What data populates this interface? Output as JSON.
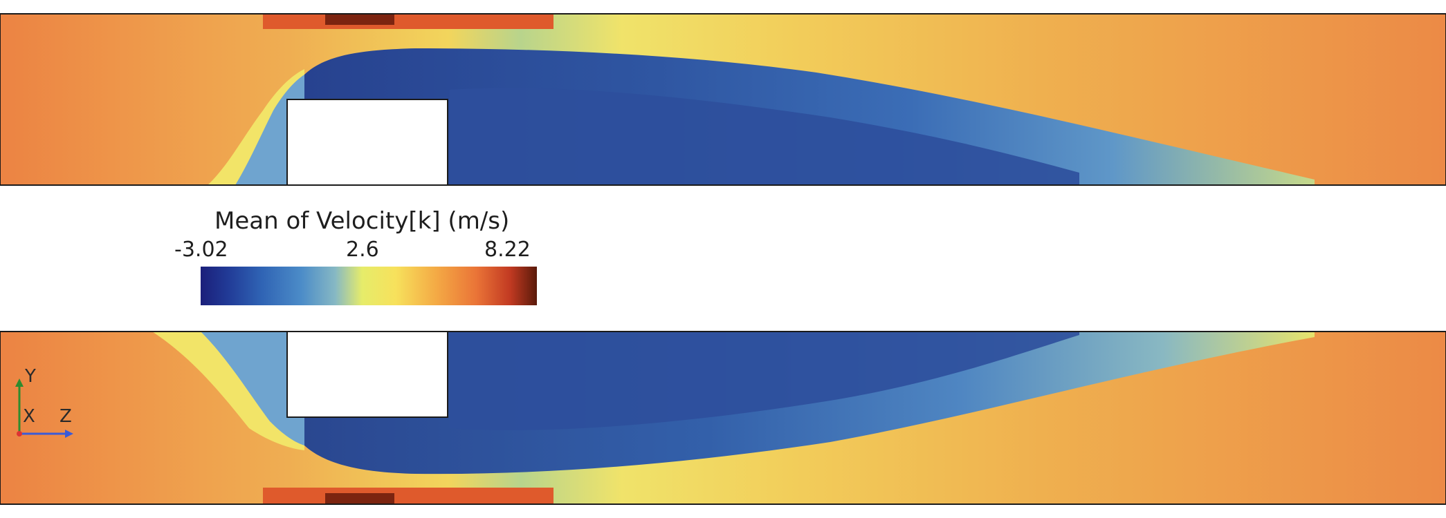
{
  "legend": {
    "title": "Mean of Velocity[k] (m/s)",
    "min_label": "-3.02",
    "mid_label": "2.6",
    "max_label": "8.22",
    "colors": [
      "#1b1f7a",
      "#213a96",
      "#2750a8",
      "#2f63b4",
      "#3a77c0",
      "#4c8cc8",
      "#64a2cf",
      "#86b8c4",
      "#b9d48c",
      "#e6ec6a",
      "#f7e15c",
      "#f6c64e",
      "#f4aa45",
      "#f0903f",
      "#ea7437",
      "#df552d",
      "#c23a22",
      "#8a2714",
      "#5a1a0a"
    ]
  },
  "axes": {
    "y_label": "Y",
    "x_label": "X",
    "z_label": "Z"
  },
  "field_colors": {
    "deep_blue": "#27428f",
    "blue": "#355da8",
    "light_blue": "#6fa4cf",
    "green": "#a9cf94",
    "yellow": "#f2e468",
    "orange": "#efa24e",
    "dark_orange": "#e8773e",
    "red_orange": "#df5a2c",
    "dark_red": "#7c2410"
  }
}
